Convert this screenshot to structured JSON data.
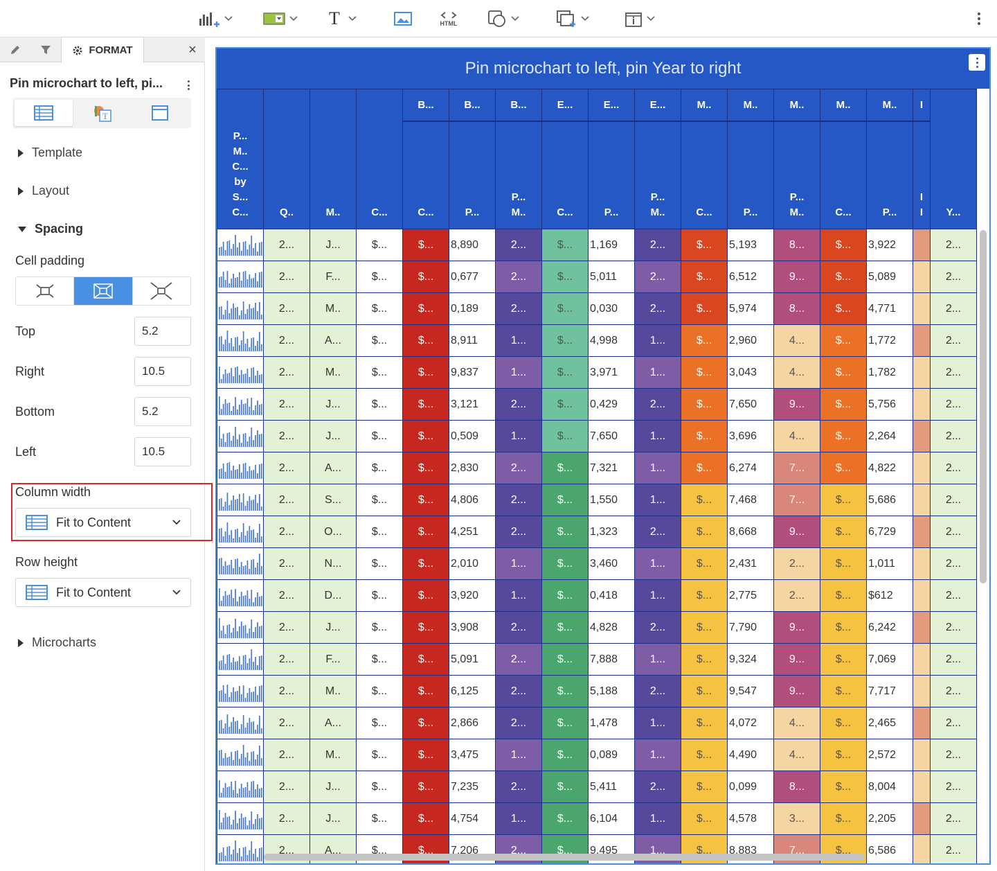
{
  "toolbar": {
    "html_label": "HTML",
    "text_icon_glyph": "T",
    "icons": [
      "insert-chart-icon",
      "filter-widget-icon",
      "text-icon",
      "image-icon",
      "html-container-icon",
      "shape-icon",
      "duplicate-icon",
      "info-window-icon",
      "more-options-icon"
    ]
  },
  "panel": {
    "tab_format_label": "FORMAT",
    "close_glyph": "×",
    "title": "Pin microchart to left, pi...",
    "sections": {
      "template": "Template",
      "layout": "Layout",
      "spacing": "Spacing",
      "microcharts": "Microcharts"
    },
    "cell_padding_label": "Cell padding",
    "cell_padding_selected": "medium",
    "top_label": "Top",
    "top_value": "5.2",
    "right_label": "Right",
    "right_value": "10.5",
    "bottom_label": "Bottom",
    "bottom_value": "5.2",
    "left_label": "Left",
    "left_value": "10.5",
    "column_width_label": "Column width",
    "column_width_value": "Fit to Content",
    "row_height_label": "Row height",
    "row_height_value": "Fit to Content"
  },
  "viz": {
    "title": "Pin microchart to left, pin Year to right",
    "group_headers": [
      "B...",
      "B...",
      "B...",
      "E...",
      "E...",
      "E...",
      "M..",
      "M..",
      "M..",
      "M..",
      "M..",
      "I"
    ],
    "leaf_headers": [
      "P...\nM..\nC...\nby\nS...\nC...",
      "Q..",
      "M..",
      "C...",
      "C...",
      "P...",
      "P...\nM..",
      "C...",
      "P...",
      "P...\nM..",
      "C...",
      "P...",
      "P...\nM..",
      "C...",
      "P...",
      "I\nI",
      "Y..."
    ],
    "rows": [
      {
        "q": "2...",
        "m": "J...",
        "c": "$...",
        "b1": "$...",
        "b2": "8,890",
        "b3": "2...",
        "e1": "$...",
        "e2": "1,169",
        "e3": "2...",
        "m1": "$...",
        "m2": "5,193",
        "m3": "8...",
        "m4": "$...",
        "m5": "3,922",
        "y": "2..."
      },
      {
        "q": "2...",
        "m": "F...",
        "c": "$...",
        "b1": "$...",
        "b2": "0,677",
        "b3": "2...",
        "e1": "$...",
        "e2": "5,011",
        "e3": "2...",
        "m1": "$...",
        "m2": "6,512",
        "m3": "9...",
        "m4": "$...",
        "m5": "5,089",
        "y": "2..."
      },
      {
        "q": "2...",
        "m": "M..",
        "c": "$...",
        "b1": "$...",
        "b2": "0,189",
        "b3": "2...",
        "e1": "$...",
        "e2": "0,030",
        "e3": "2...",
        "m1": "$...",
        "m2": "5,974",
        "m3": "8...",
        "m4": "$...",
        "m5": "4,771",
        "y": "2..."
      },
      {
        "q": "2...",
        "m": "A...",
        "c": "$...",
        "b1": "$...",
        "b2": "8,911",
        "b3": "1...",
        "e1": "$...",
        "e2": "4,998",
        "e3": "1...",
        "m1": "$...",
        "m2": "2,960",
        "m3": "4...",
        "m4": "$...",
        "m5": "1,772",
        "y": "2..."
      },
      {
        "q": "2...",
        "m": "M..",
        "c": "$...",
        "b1": "$...",
        "b2": "9,837",
        "b3": "1...",
        "e1": "$...",
        "e2": "3,971",
        "e3": "1...",
        "m1": "$...",
        "m2": "3,043",
        "m3": "4...",
        "m4": "$...",
        "m5": "1,782",
        "y": "2..."
      },
      {
        "q": "2...",
        "m": "J...",
        "c": "$...",
        "b1": "$...",
        "b2": "3,121",
        "b3": "2...",
        "e1": "$...",
        "e2": "0,429",
        "e3": "2...",
        "m1": "$...",
        "m2": "7,650",
        "m3": "9...",
        "m4": "$...",
        "m5": "5,756",
        "y": "2..."
      },
      {
        "q": "2...",
        "m": "J...",
        "c": "$...",
        "b1": "$...",
        "b2": "0,509",
        "b3": "1...",
        "e1": "$...",
        "e2": "7,650",
        "e3": "1...",
        "m1": "$...",
        "m2": "3,696",
        "m3": "4...",
        "m4": "$...",
        "m5": "2,264",
        "y": "2..."
      },
      {
        "q": "2...",
        "m": "A...",
        "c": "$...",
        "b1": "$...",
        "b2": "2,830",
        "b3": "2...",
        "e1": "$...",
        "e2": "7,321",
        "e3": "1...",
        "m1": "$...",
        "m2": "6,274",
        "m3": "7...",
        "m4": "$...",
        "m5": "4,822",
        "y": "2..."
      },
      {
        "q": "2...",
        "m": "S...",
        "c": "$...",
        "b1": "$...",
        "b2": "4,806",
        "b3": "2...",
        "e1": "$...",
        "e2": "1,550",
        "e3": "1...",
        "m1": "$...",
        "m2": "7,468",
        "m3": "7...",
        "m4": "$...",
        "m5": "5,686",
        "y": "2..."
      },
      {
        "q": "2...",
        "m": "O...",
        "c": "$...",
        "b1": "$...",
        "b2": "4,251",
        "b3": "2...",
        "e1": "$...",
        "e2": "1,323",
        "e3": "2...",
        "m1": "$...",
        "m2": "8,668",
        "m3": "9...",
        "m4": "$...",
        "m5": "6,729",
        "y": "2..."
      },
      {
        "q": "2...",
        "m": "N...",
        "c": "$...",
        "b1": "$...",
        "b2": "2,010",
        "b3": "1...",
        "e1": "$...",
        "e2": "3,460",
        "e3": "1...",
        "m1": "$...",
        "m2": "2,431",
        "m3": "2...",
        "m4": "$...",
        "m5": "1,011",
        "y": "2..."
      },
      {
        "q": "2...",
        "m": "D...",
        "c": "$...",
        "b1": "$...",
        "b2": "3,920",
        "b3": "1...",
        "e1": "$...",
        "e2": "0,418",
        "e3": "1...",
        "m1": "$...",
        "m2": "2,775",
        "m3": "2...",
        "m4": "$...",
        "m5": "$612",
        "y": "2..."
      },
      {
        "q": "2...",
        "m": "J...",
        "c": "$...",
        "b1": "$...",
        "b2": "3,908",
        "b3": "2...",
        "e1": "$...",
        "e2": "4,828",
        "e3": "2...",
        "m1": "$...",
        "m2": "7,790",
        "m3": "9...",
        "m4": "$...",
        "m5": "6,242",
        "y": "2..."
      },
      {
        "q": "2...",
        "m": "F...",
        "c": "$...",
        "b1": "$...",
        "b2": "5,091",
        "b3": "2...",
        "e1": "$...",
        "e2": "7,888",
        "e3": "1...",
        "m1": "$...",
        "m2": "9,324",
        "m3": "9...",
        "m4": "$...",
        "m5": "7,069",
        "y": "2..."
      },
      {
        "q": "2...",
        "m": "M..",
        "c": "$...",
        "b1": "$...",
        "b2": "6,125",
        "b3": "2...",
        "e1": "$...",
        "e2": "5,188",
        "e3": "2...",
        "m1": "$...",
        "m2": "9,547",
        "m3": "9...",
        "m4": "$...",
        "m5": "7,717",
        "y": "2..."
      },
      {
        "q": "2...",
        "m": "A...",
        "c": "$...",
        "b1": "$...",
        "b2": "2,866",
        "b3": "2...",
        "e1": "$...",
        "e2": "1,478",
        "e3": "1...",
        "m1": "$...",
        "m2": "4,072",
        "m3": "4...",
        "m4": "$...",
        "m5": "2,465",
        "y": "2..."
      },
      {
        "q": "2...",
        "m": "M..",
        "c": "$...",
        "b1": "$...",
        "b2": "3,475",
        "b3": "1...",
        "e1": "$...",
        "e2": "0,089",
        "e3": "1...",
        "m1": "$...",
        "m2": "4,490",
        "m3": "4...",
        "m4": "$...",
        "m5": "2,572",
        "y": "2..."
      },
      {
        "q": "2...",
        "m": "J...",
        "c": "$...",
        "b1": "$...",
        "b2": "7,235",
        "b3": "2...",
        "e1": "$...",
        "e2": "5,411",
        "e3": "2...",
        "m1": "$...",
        "m2": "0,099",
        "m3": "8...",
        "m4": "$...",
        "m5": "8,004",
        "y": "2..."
      },
      {
        "q": "2...",
        "m": "J...",
        "c": "$...",
        "b1": "$...",
        "b2": "4,754",
        "b3": "1...",
        "e1": "$...",
        "e2": "6,104",
        "e3": "1...",
        "m1": "$...",
        "m2": "4,578",
        "m3": "3...",
        "m4": "$...",
        "m5": "2,205",
        "y": "2..."
      },
      {
        "q": "2...",
        "m": "A...",
        "c": "$...",
        "b1": "$...",
        "b2": "7,206",
        "b3": "2...",
        "e1": "$...",
        "e2": "9,495",
        "e3": "1...",
        "m1": "$...",
        "m2": "8,883",
        "m3": "7...",
        "m4": "$...",
        "m5": "6,586",
        "y": "2..."
      }
    ]
  },
  "colors": {
    "header_blue": "#2558c4",
    "attr_green": "#e3f1d4",
    "red": "#c6281f",
    "purple_dark": "#56489b",
    "purple_mid": "#7f5ca6",
    "green_light": "#6fc29b",
    "green_dark": "#4aa66d",
    "orange": "#ea7125",
    "orange_red": "#d9461f",
    "yellow": "#f5c242",
    "mauve_dark": "#b14f7c",
    "mauve_mid": "#d9877a",
    "peach": "#f5d6a2",
    "salmon": "#e29a7d",
    "select_blue": "#4a90e2",
    "highlight_red": "#d9262c"
  }
}
